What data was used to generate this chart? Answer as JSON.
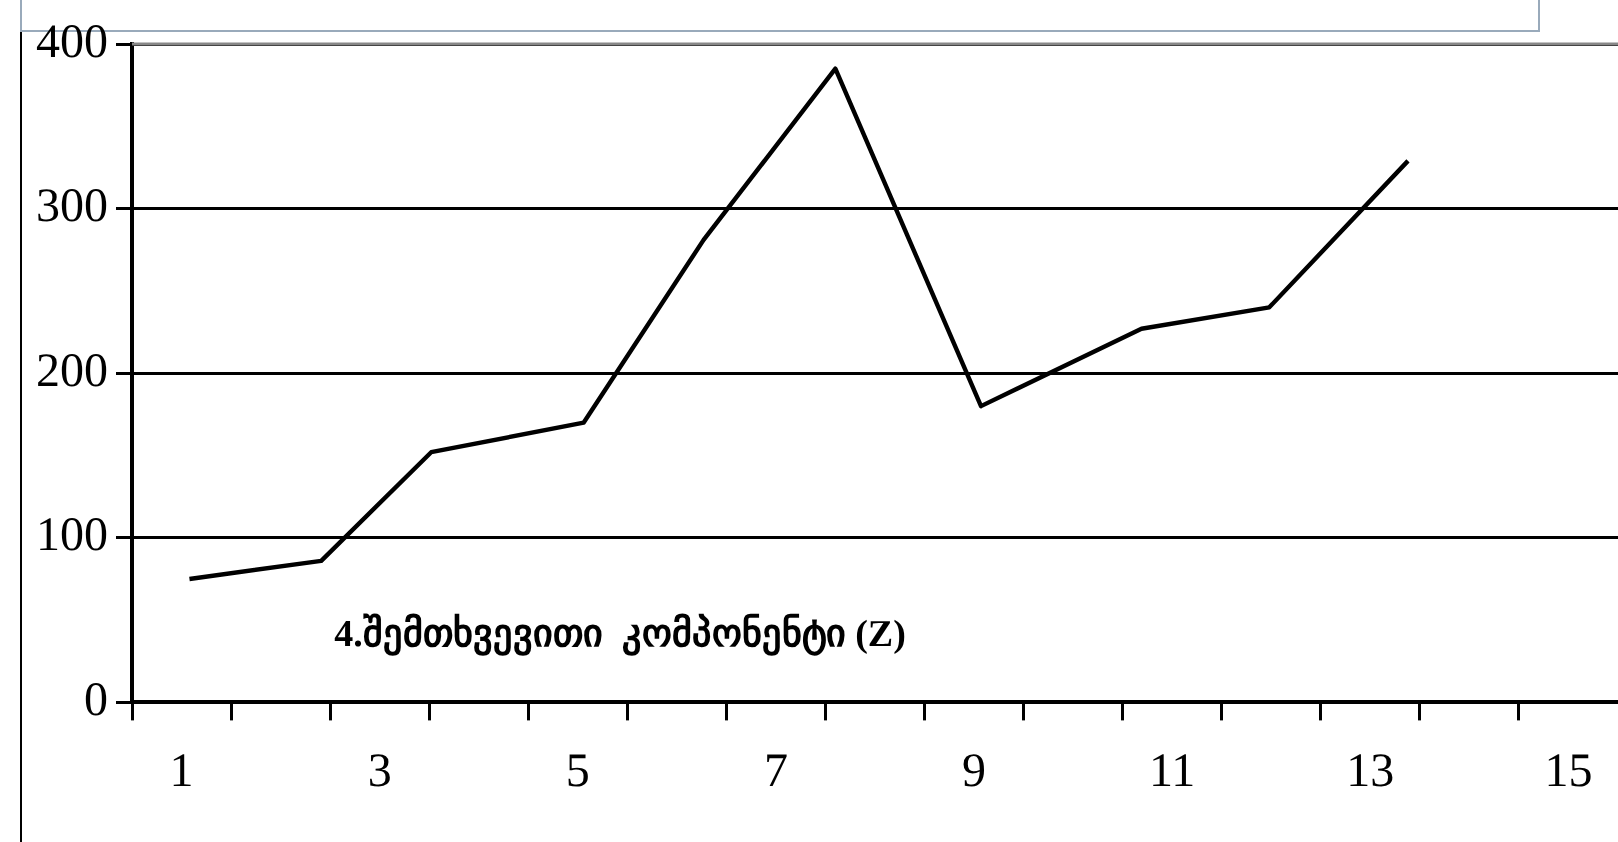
{
  "chart_data": {
    "type": "line",
    "annotations": [
      "4.შემთხვევითი  კომპონენტი (Z)"
    ],
    "series": [
      {
        "color": "#000000",
        "x": [
          1.08,
          2.41,
          3.52,
          5.06,
          6.27,
          7.6,
          9.07,
          10.69,
          11.98,
          13.38
        ],
        "values": [
          75,
          86,
          152,
          170,
          281,
          385,
          180,
          227,
          240,
          329
        ]
      }
    ],
    "xlim": [
      0.5,
      15.5
    ],
    "xticks": [
      {
        "value": 0.5,
        "label": null
      },
      1,
      {
        "value": 1.5,
        "label": null
      },
      {
        "value": 2.5,
        "label": null
      },
      3,
      {
        "value": 3.5,
        "label": null
      },
      {
        "value": 4.5,
        "label": null
      },
      5,
      {
        "value": 5.5,
        "label": null
      },
      {
        "value": 6.5,
        "label": null
      },
      7,
      {
        "value": 7.5,
        "label": null
      },
      {
        "value": 8.5,
        "label": null
      },
      9,
      {
        "value": 9.5,
        "label": null
      },
      {
        "value": 10.5,
        "label": null
      },
      11,
      {
        "value": 11.5,
        "label": null
      },
      {
        "value": 12.5,
        "label": null
      },
      13,
      {
        "value": 13.5,
        "label": null
      },
      {
        "value": 14.5,
        "label": null
      },
      15
    ],
    "ylim": [
      0,
      400
    ],
    "yticks": [
      0,
      100,
      200,
      300,
      400
    ],
    "grid": "y",
    "legend": false,
    "marker": "none",
    "line_style": "solid"
  }
}
